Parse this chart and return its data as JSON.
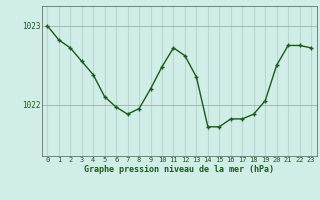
{
  "x": [
    0,
    1,
    2,
    3,
    4,
    5,
    6,
    7,
    8,
    9,
    10,
    11,
    12,
    13,
    14,
    15,
    16,
    17,
    18,
    19,
    20,
    21,
    22,
    23
  ],
  "y": [
    1023.0,
    1022.82,
    1022.72,
    1022.55,
    1022.38,
    1022.1,
    1021.97,
    1021.88,
    1021.95,
    1022.2,
    1022.48,
    1022.72,
    1022.62,
    1022.35,
    1021.72,
    1021.72,
    1021.82,
    1021.82,
    1021.88,
    1022.05,
    1022.5,
    1022.75,
    1022.75,
    1022.72
  ],
  "line_color": "#1a5c1a",
  "marker_color": "#1a5c1a",
  "bg_color": "#d0ede8",
  "vgrid_color": "#b8d8d2",
  "hgrid_color": "#aaaaaa",
  "xlabel": "Graphe pression niveau de la mer (hPa)",
  "ylim_min": 1021.35,
  "ylim_max": 1023.25,
  "xlim_min": -0.5,
  "xlim_max": 23.5
}
